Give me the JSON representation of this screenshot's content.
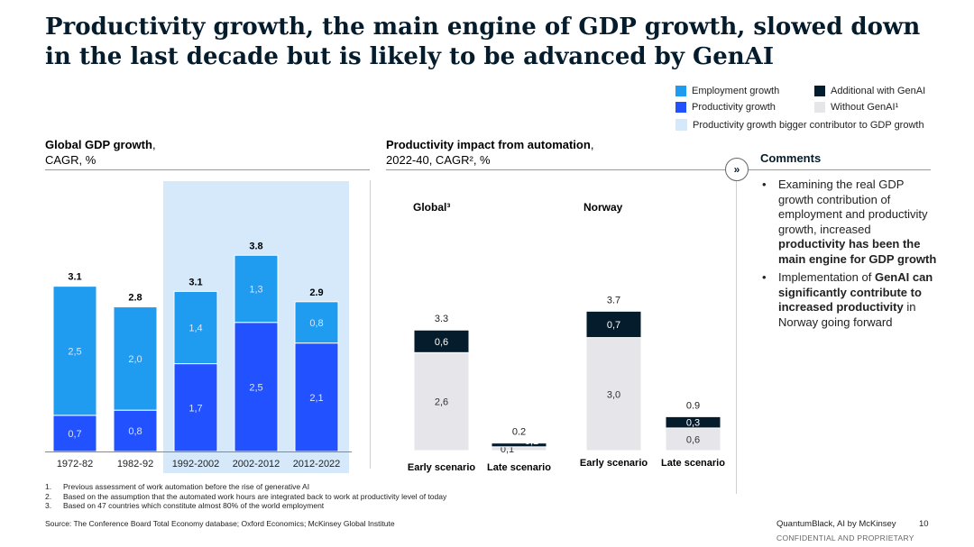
{
  "title": "Productivity growth, the main engine of GDP growth, slowed down in the last decade but is likely to be advanced by GenAI",
  "legend": {
    "employment": "Employment growth",
    "productivity": "Productivity growth",
    "additional": "Additional with GenAI",
    "without": "Without GenAI¹",
    "bigger": "Productivity growth bigger contributor to GDP growth"
  },
  "colors": {
    "employment": "#1f9bf0",
    "productivity": "#2251ff",
    "additional": "#051c2c",
    "without": "#e6e6ea",
    "highlight": "#d5e9fa",
    "white_label": "#ffffff",
    "dark_label": "#333333"
  },
  "left_panel": {
    "title": "Global GDP growth",
    "subtitle": "CAGR, %"
  },
  "middle_panel": {
    "title": "Productivity impact from automation",
    "subtitle": "2022-40, CAGR², %"
  },
  "comments": {
    "heading": "Comments",
    "items": [
      [
        {
          "text": "Examining the real GDP growth contribution of employment and productivity growth, increased ",
          "bold": false
        },
        {
          "text": "productivity has been the main engine for GDP growth",
          "bold": true
        }
      ],
      [
        {
          "text": "Implementation of ",
          "bold": false
        },
        {
          "text": "GenAI can significantly contribute to increased productivity",
          "bold": true
        },
        {
          "text": " in Norway going forward",
          "bold": false
        }
      ]
    ]
  },
  "chart_data": [
    {
      "type": "bar",
      "stacked": true,
      "title": "Global GDP growth",
      "ylabel": "CAGR, %",
      "categories": [
        "1972-82",
        "1982-92",
        "1992-2002",
        "2002-2012",
        "2012-2022"
      ],
      "series": [
        {
          "name": "Productivity growth",
          "values": [
            0.7,
            0.8,
            1.7,
            2.5,
            2.1
          ],
          "labels": [
            "0,7",
            "0,8",
            "1,7",
            "2,5",
            "2,1"
          ]
        },
        {
          "name": "Employment growth",
          "values": [
            2.5,
            2.0,
            1.4,
            1.3,
            0.8
          ],
          "labels": [
            "2,5",
            "2,0",
            "1,4",
            "1,3",
            "0,8"
          ]
        }
      ],
      "totals": [
        "3.1",
        "2.8",
        "3.1",
        "3.8",
        "2.9"
      ],
      "highlighted_categories": [
        "1992-2002",
        "2002-2012",
        "2012-2022"
      ],
      "ylim": [
        0,
        4
      ]
    },
    {
      "type": "bar",
      "stacked": true,
      "title": "Productivity impact from automation",
      "ylabel": "2022-40, CAGR², %",
      "groups": [
        {
          "name": "Global³",
          "categories": [
            "Early scenario",
            "Late scenario"
          ],
          "series": [
            {
              "name": "Without GenAI¹",
              "values": [
                2.6,
                0.1
              ],
              "labels": [
                "2,6",
                "0,1"
              ]
            },
            {
              "name": "Additional with GenAI",
              "values": [
                0.6,
                0.1
              ],
              "labels": [
                "0,6",
                "0,1"
              ]
            }
          ],
          "totals": [
            "3.3",
            "0.2"
          ]
        },
        {
          "name": "Norway",
          "categories": [
            "Early scenario",
            "Late scenario"
          ],
          "series": [
            {
              "name": "Without GenAI¹",
              "values": [
                3.0,
                0.6
              ],
              "labels": [
                "3,0",
                "0,6"
              ]
            },
            {
              "name": "Additional with GenAI",
              "values": [
                0.7,
                0.3
              ],
              "labels": [
                "0,7",
                "0,3"
              ]
            }
          ],
          "totals": [
            "3.7",
            "0.9"
          ]
        }
      ],
      "ylim": [
        0,
        4
      ]
    }
  ],
  "footnotes": [
    {
      "num": "1.",
      "text": "Previous assessment of work automation before the rise of generative AI"
    },
    {
      "num": "2.",
      "text": "Based on the assumption that the automated work hours are integrated back to work at productivity level of today"
    },
    {
      "num": "3.",
      "text": "Based on 47 countries which constitute almost 80% of the world employment"
    }
  ],
  "source": "Source: The Conference Board Total Economy database; Oxford Economics; McKinsey Global Institute",
  "brand": "QuantumBlack, AI by McKinsey",
  "page_number": "10",
  "confidential": "CONFIDENTIAL AND PROPRIETARY"
}
